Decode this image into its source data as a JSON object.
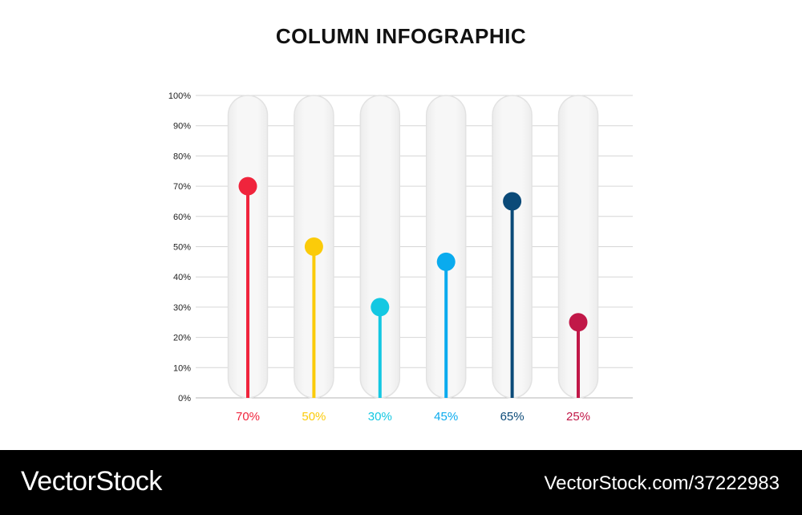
{
  "title": "COLUMN INFOGRAPHIC",
  "chart_data": {
    "type": "bar",
    "style": "lollipop columns in rounded translucent tubes",
    "ylim": [
      0,
      100
    ],
    "yticks": [
      "0%",
      "10%",
      "20%",
      "30%",
      "40%",
      "50%",
      "60%",
      "70%",
      "80%",
      "90%",
      "100%"
    ],
    "grid": true,
    "values": [
      70,
      50,
      30,
      45,
      65,
      25
    ],
    "value_labels": [
      "70%",
      "50%",
      "30%",
      "45%",
      "65%",
      "25%"
    ],
    "colors": [
      "#f0243c",
      "#fbcb0a",
      "#14c8e2",
      "#0aabee",
      "#0b4a78",
      "#c11848"
    ]
  },
  "footer": {
    "brand": "VectorStock",
    "stock_id": "VectorStock.com/37222983"
  }
}
